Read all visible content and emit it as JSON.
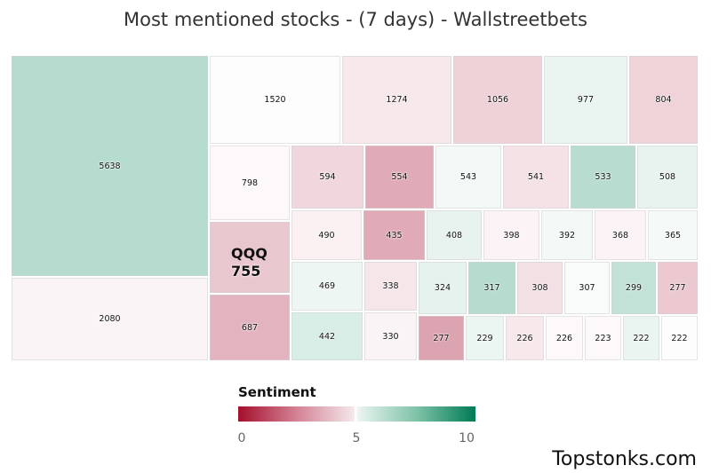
{
  "title": "Most mentioned stocks - (7 days) - Wallstreetbets",
  "legend": {
    "title": "Sentiment",
    "min_label": "0",
    "mid_label": "5",
    "max_label": "10",
    "colors": {
      "negative": "#a50f2d",
      "neutral": "#f6f6f6",
      "positive": "#007a55"
    }
  },
  "brand": "Topstonks.com",
  "chart_data": {
    "type": "treemap",
    "title": "Most mentioned stocks - (7 days) - Wallstreetbets",
    "colorscale": {
      "label": "Sentiment",
      "min": 0,
      "mid": 5,
      "max": 10
    },
    "items": [
      {
        "ticker": "",
        "mentions": 5638,
        "color": "#b5dccf"
      },
      {
        "ticker": "",
        "mentions": 2080,
        "color": "#fbf4f6"
      },
      {
        "ticker": "",
        "mentions": 1520,
        "color": "#fdfdfd"
      },
      {
        "ticker": "",
        "mentions": 1274,
        "color": "#f7e8eb"
      },
      {
        "ticker": "",
        "mentions": 1056,
        "color": "#efd2d8"
      },
      {
        "ticker": "",
        "mentions": 977,
        "color": "#eaf4f1"
      },
      {
        "ticker": "",
        "mentions": 804,
        "color": "#efd3d9"
      },
      {
        "ticker": "",
        "mentions": 798,
        "color": "#fdf8f9"
      },
      {
        "ticker": "QQQ",
        "mentions": 755,
        "color": "#e9c7cf"
      },
      {
        "ticker": "",
        "mentions": 687,
        "color": "#e3b4bf"
      },
      {
        "ticker": "",
        "mentions": 594,
        "color": "#f0d7dd"
      },
      {
        "ticker": "",
        "mentions": 554,
        "color": "#e0abb7"
      },
      {
        "ticker": "",
        "mentions": 543,
        "color": "#f3f9f7"
      },
      {
        "ticker": "",
        "mentions": 541,
        "color": "#f4e2e6"
      },
      {
        "ticker": "",
        "mentions": 533,
        "color": "#b8ddd0"
      },
      {
        "ticker": "",
        "mentions": 508,
        "color": "#e8f3ef"
      },
      {
        "ticker": "",
        "mentions": 490,
        "color": "#fbf1f3"
      },
      {
        "ticker": "",
        "mentions": 435,
        "color": "#e0abb7"
      },
      {
        "ticker": "",
        "mentions": 408,
        "color": "#e8f3ef"
      },
      {
        "ticker": "",
        "mentions": 398,
        "color": "#fbf3f5"
      },
      {
        "ticker": "",
        "mentions": 392,
        "color": "#f3f9f7"
      },
      {
        "ticker": "",
        "mentions": 368,
        "color": "#fbf3f5"
      },
      {
        "ticker": "",
        "mentions": 365,
        "color": "#f5faf8"
      },
      {
        "ticker": "",
        "mentions": 469,
        "color": "#eef6f3"
      },
      {
        "ticker": "",
        "mentions": 442,
        "color": "#d8ede6"
      },
      {
        "ticker": "",
        "mentions": 338,
        "color": "#f6e6ea"
      },
      {
        "ticker": "",
        "mentions": 330,
        "color": "#fbf4f6"
      },
      {
        "ticker": "",
        "mentions": 324,
        "color": "#e5f2ed"
      },
      {
        "ticker": "",
        "mentions": 317,
        "color": "#b5dccf"
      },
      {
        "ticker": "",
        "mentions": 308,
        "color": "#f3e0e5"
      },
      {
        "ticker": "",
        "mentions": 307,
        "color": "#f8fbfa"
      },
      {
        "ticker": "",
        "mentions": 299,
        "color": "#c2e2d7"
      },
      {
        "ticker": "",
        "mentions": 277,
        "color": "#ecc9d1"
      },
      {
        "ticker": "",
        "mentions": 277,
        "color": "#dca3b1"
      },
      {
        "ticker": "",
        "mentions": 229,
        "color": "#ebf5f2"
      },
      {
        "ticker": "",
        "mentions": 226,
        "color": "#f7e8eb"
      },
      {
        "ticker": "",
        "mentions": 226,
        "color": "#fdf9fa"
      },
      {
        "ticker": "",
        "mentions": 223,
        "color": "#fdf9fa"
      },
      {
        "ticker": "",
        "mentions": 222,
        "color": "#eaf4f1"
      },
      {
        "ticker": "",
        "mentions": 222,
        "color": "#fdfdfd"
      }
    ]
  }
}
